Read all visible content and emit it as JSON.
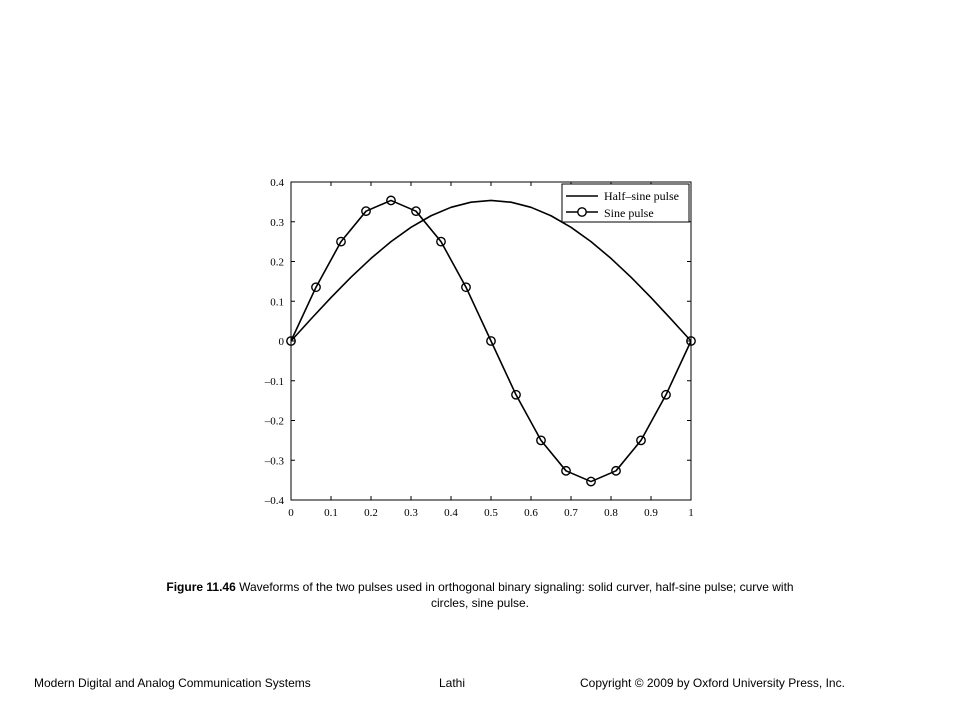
{
  "chart_data": {
    "type": "line",
    "title": "",
    "xlabel": "",
    "ylabel": "",
    "xlim": [
      0,
      1
    ],
    "ylim": [
      -0.4,
      0.4
    ],
    "x_ticks": [
      "0",
      "0.1",
      "0.2",
      "0.3",
      "0.4",
      "0.5",
      "0.6",
      "0.7",
      "0.8",
      "0.9",
      "1"
    ],
    "y_ticks": [
      "0.4",
      "0.3",
      "0.2",
      "0.1",
      "0",
      "–0.1",
      "–0.2",
      "–0.3",
      "–0.4"
    ],
    "grid": false,
    "legend_position": "top-right",
    "series": [
      {
        "name": "Half–sine pulse",
        "marker": "none",
        "color": "#000000",
        "x": [
          0,
          0.05,
          0.1,
          0.15,
          0.2,
          0.25,
          0.3,
          0.35,
          0.4,
          0.45,
          0.5,
          0.55,
          0.6,
          0.65,
          0.7,
          0.75,
          0.8,
          0.85,
          0.9,
          0.95,
          1
        ],
        "y": [
          0,
          0.0553,
          0.1093,
          0.1605,
          0.2078,
          0.25,
          0.286,
          0.3151,
          0.3363,
          0.3492,
          0.3536,
          0.3492,
          0.3363,
          0.3151,
          0.286,
          0.25,
          0.2078,
          0.1605,
          0.1093,
          0.0553,
          0
        ]
      },
      {
        "name": "Sine pulse",
        "marker": "circle",
        "color": "#000000",
        "x": [
          0,
          0.0625,
          0.125,
          0.1875,
          0.25,
          0.3125,
          0.375,
          0.4375,
          0.5,
          0.5625,
          0.625,
          0.6875,
          0.75,
          0.8125,
          0.875,
          0.9375,
          1
        ],
        "y": [
          0,
          0.1353,
          0.25,
          0.3266,
          0.3536,
          0.3266,
          0.25,
          0.1353,
          0,
          -0.1353,
          -0.25,
          -0.3266,
          -0.3536,
          -0.3266,
          -0.25,
          -0.1353,
          0
        ]
      }
    ]
  },
  "caption": {
    "label": "Figure 11.46",
    "text": " Waveforms of the two pulses used in orthogonal binary signaling: solid curver, half-sine pulse; curve with circles, sine pulse."
  },
  "footer": {
    "left": "Modern Digital and Analog Communication Systems",
    "center": "Lathi",
    "right": "Copyright © 2009 by Oxford University Press, Inc."
  }
}
